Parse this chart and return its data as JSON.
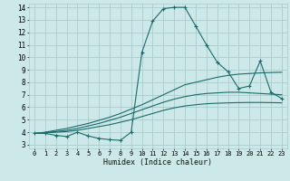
{
  "xlabel": "Humidex (Indice chaleur)",
  "bg_color": "#cce8e8",
  "grid_color": "#aacccc",
  "line_color": "#1a6b6b",
  "xlim": [
    -0.5,
    23.5
  ],
  "ylim": [
    2.7,
    14.3
  ],
  "xtick_labels": [
    "0",
    "1",
    "2",
    "3",
    "4",
    "5",
    "6",
    "7",
    "8",
    "9",
    "10",
    "11",
    "12",
    "13",
    "14",
    "15",
    "16",
    "17",
    "18",
    "19",
    "20",
    "21",
    "22",
    "23"
  ],
  "xtick_pos": [
    0,
    1,
    2,
    3,
    4,
    5,
    6,
    7,
    8,
    9,
    10,
    11,
    12,
    13,
    14,
    15,
    16,
    17,
    18,
    19,
    20,
    21,
    22,
    23
  ],
  "ytick_pos": [
    3,
    4,
    5,
    6,
    7,
    8,
    9,
    10,
    11,
    12,
    13,
    14
  ],
  "curve1_x": [
    0,
    1,
    2,
    3,
    4,
    5,
    6,
    7,
    8,
    9,
    10,
    11,
    12,
    13,
    14,
    15,
    16,
    17,
    18,
    19,
    20,
    21,
    22,
    23
  ],
  "curve1_y": [
    3.9,
    3.9,
    3.75,
    3.65,
    4.0,
    3.7,
    3.5,
    3.4,
    3.35,
    4.0,
    10.4,
    12.9,
    13.9,
    14.0,
    14.0,
    12.5,
    11.0,
    9.6,
    8.85,
    7.5,
    7.7,
    9.7,
    7.2,
    6.7
  ],
  "curve2_x": [
    0,
    1,
    2,
    3,
    4,
    5,
    6,
    7,
    8,
    9,
    10,
    11,
    12,
    13,
    14,
    15,
    16,
    17,
    18,
    19,
    20,
    21,
    22,
    23
  ],
  "curve2_y": [
    3.9,
    4.0,
    4.15,
    4.3,
    4.5,
    4.7,
    4.95,
    5.2,
    5.5,
    5.85,
    6.2,
    6.6,
    7.0,
    7.4,
    7.8,
    8.0,
    8.2,
    8.4,
    8.55,
    8.65,
    8.7,
    8.75,
    8.78,
    8.8
  ],
  "curve3_x": [
    0,
    1,
    2,
    3,
    4,
    5,
    6,
    7,
    8,
    9,
    10,
    11,
    12,
    13,
    14,
    15,
    16,
    17,
    18,
    19,
    20,
    21,
    22,
    23
  ],
  "curve3_y": [
    3.9,
    3.97,
    4.05,
    4.15,
    4.3,
    4.5,
    4.7,
    4.95,
    5.2,
    5.5,
    5.8,
    6.1,
    6.4,
    6.65,
    6.85,
    7.0,
    7.1,
    7.15,
    7.2,
    7.2,
    7.15,
    7.1,
    7.05,
    7.0
  ],
  "curve4_x": [
    0,
    1,
    2,
    3,
    4,
    5,
    6,
    7,
    8,
    9,
    10,
    11,
    12,
    13,
    14,
    15,
    16,
    17,
    18,
    19,
    20,
    21,
    22,
    23
  ],
  "curve4_y": [
    3.9,
    3.95,
    4.0,
    4.05,
    4.15,
    4.3,
    4.45,
    4.6,
    4.8,
    5.0,
    5.25,
    5.5,
    5.75,
    5.95,
    6.1,
    6.2,
    6.28,
    6.32,
    6.35,
    6.37,
    6.38,
    6.38,
    6.37,
    6.35
  ]
}
